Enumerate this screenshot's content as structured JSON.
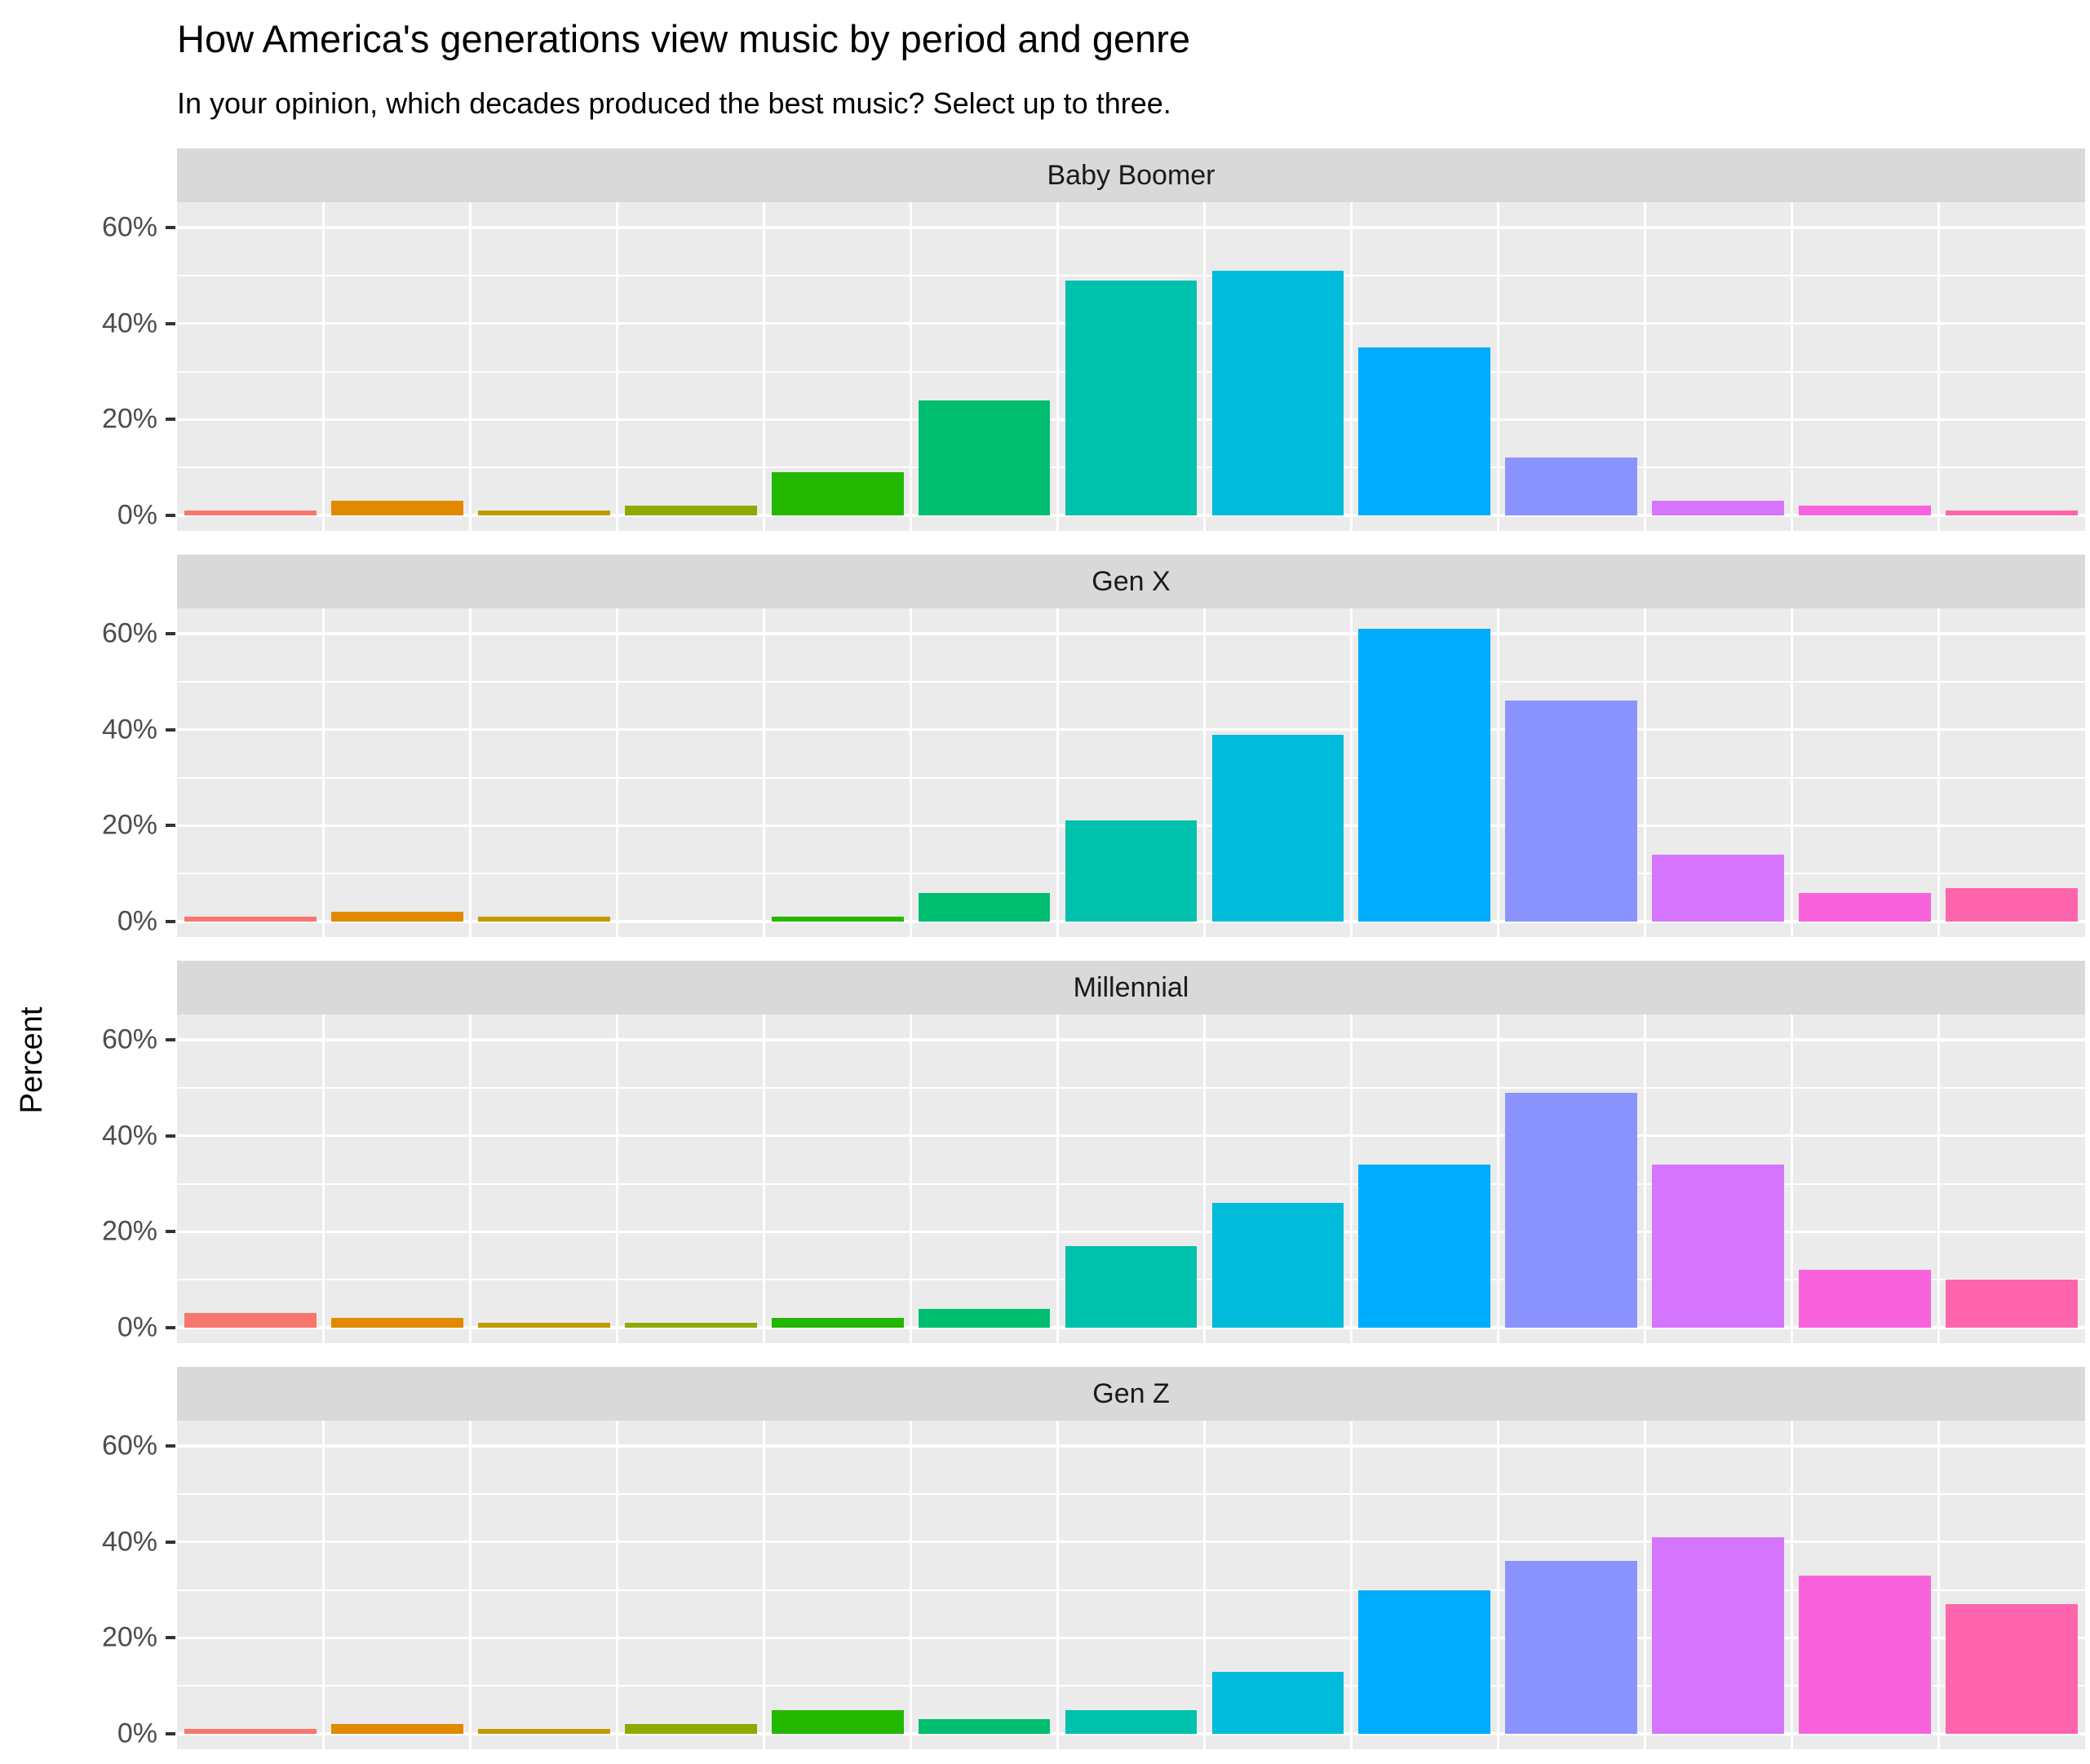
{
  "header": {
    "title": "How America's generations view music by period and genre",
    "subtitle": "In your opinion, which decades produced the best music? Select up to three."
  },
  "chart_data": {
    "type": "bar",
    "faceted": true,
    "facet_layout": "rows",
    "facet_titles": [
      "Baby Boomer",
      "Gen X",
      "Millennial",
      "Gen Z"
    ],
    "n_categories": 13,
    "x_tick_labels_visible": false,
    "series": [
      {
        "name": "Baby Boomer",
        "values": [
          1,
          3,
          1,
          2,
          9,
          24,
          49,
          51,
          35,
          12,
          3,
          2,
          1
        ]
      },
      {
        "name": "Gen X",
        "values": [
          1,
          2,
          1,
          0,
          1,
          6,
          21,
          39,
          61,
          46,
          14,
          6,
          7
        ]
      },
      {
        "name": "Millennial",
        "values": [
          3,
          2,
          1,
          1,
          2,
          4,
          17,
          26,
          34,
          49,
          34,
          12,
          10
        ]
      },
      {
        "name": "Gen Z",
        "values": [
          1,
          2,
          1,
          2,
          5,
          3,
          5,
          13,
          30,
          36,
          41,
          33,
          27
        ]
      }
    ],
    "bar_colors": [
      "#F8766D",
      "#E18A00",
      "#BE9C00",
      "#8CAB00",
      "#24B700",
      "#00BE70",
      "#00C1AB",
      "#00BBDA",
      "#00ACFC",
      "#8B93FF",
      "#D575FE",
      "#F962DD",
      "#FF65AC"
    ],
    "ylabel": "Percent",
    "y_major_ticks": [
      {
        "value": 0,
        "label": "0%"
      },
      {
        "value": 20,
        "label": "20%"
      },
      {
        "value": 40,
        "label": "40%"
      },
      {
        "value": 60,
        "label": "60%"
      }
    ],
    "y_minor_ticks": [
      10,
      30,
      50
    ],
    "ylim": [
      0,
      65
    ],
    "grid": true,
    "colors": {
      "panel_bg": "#EBEBEB",
      "strip_bg": "#D9D9D9",
      "gridline": "#FFFFFF",
      "tick_label": "#4D4D4D",
      "strip_text": "#1A1A1A",
      "tick_mark": "#333333",
      "page_bg": "#FFFFFF"
    }
  }
}
